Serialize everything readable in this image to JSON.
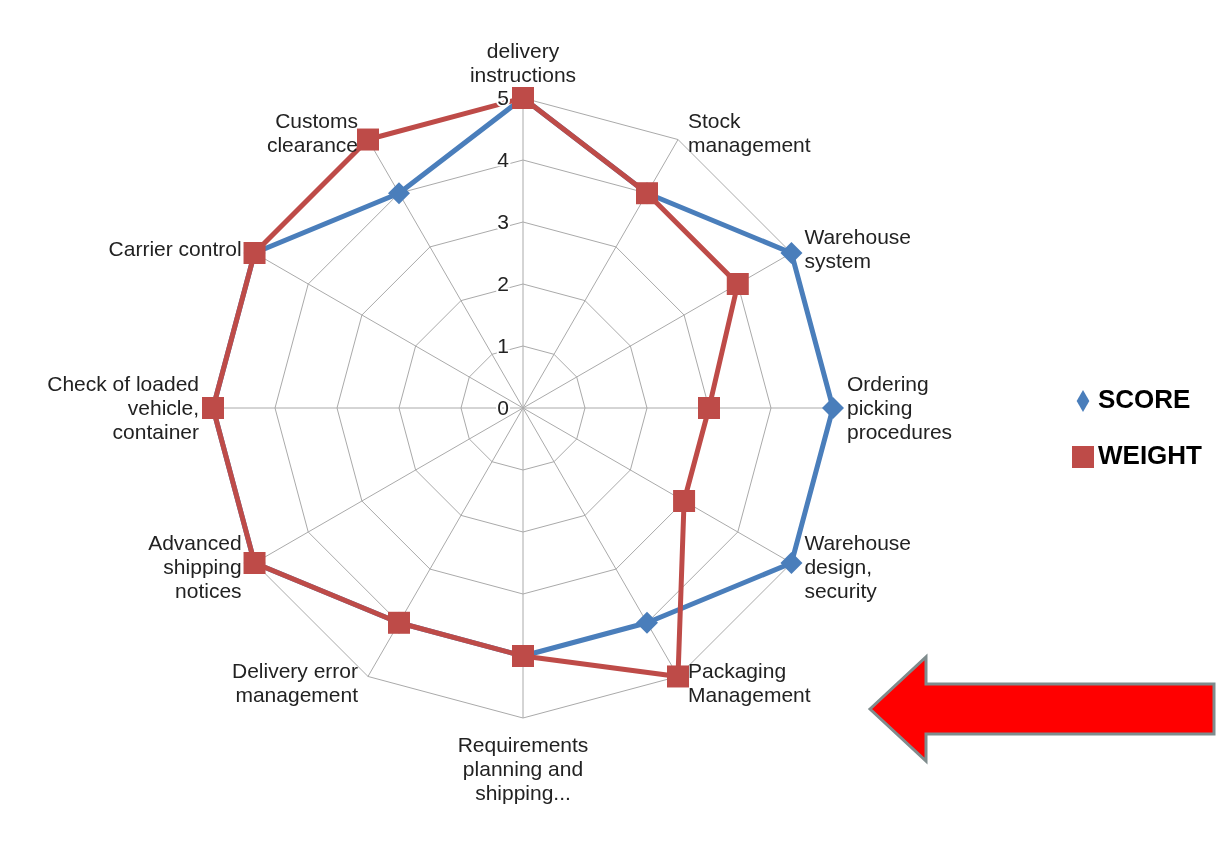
{
  "chart_data": {
    "type": "radar",
    "categories": [
      "delivery instructions",
      "Stock management",
      "Warehouse system",
      "Ordering picking procedures",
      "Warehouse design, security",
      "Packaging Management",
      "Requirements planning and shipping...",
      "Delivery error management",
      "Advanced shipping notices",
      "Check of loaded vehicle, container",
      "Carrier control",
      "Customs clearance"
    ],
    "series": [
      {
        "name": "SCORE",
        "color": "#4a7ebb",
        "marker": "diamond",
        "values": [
          5,
          4,
          5,
          5,
          5,
          4,
          4,
          4,
          5,
          5,
          5,
          4
        ]
      },
      {
        "name": "WEIGHT",
        "color": "#be4b48",
        "marker": "square",
        "values": [
          5,
          4,
          4,
          3,
          3,
          5,
          4,
          4,
          5,
          5,
          5,
          5
        ]
      }
    ],
    "ylim": [
      0,
      5
    ],
    "yticks": [
      0,
      1,
      2,
      3,
      4,
      5
    ],
    "grid": true,
    "legend": "right"
  }
}
